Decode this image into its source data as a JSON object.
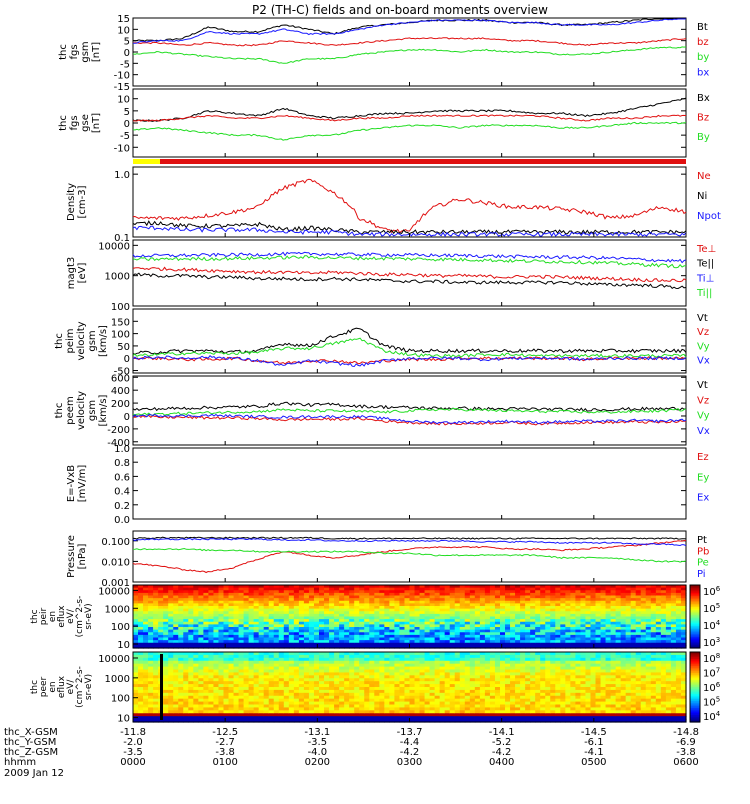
{
  "title": "P2 (TH-C) fields and on-board moments overview",
  "colors": {
    "black": "#000000",
    "red": "#e01010",
    "green": "#22dd22",
    "blue": "#1a1aff",
    "yellow": "#ffff00"
  },
  "chart_data": [
    {
      "type": "line",
      "panel": "fgs-gsm",
      "ylabel": [
        "thc",
        "fgs",
        "gsm",
        "[nT]"
      ],
      "yticks": [
        "15",
        "10",
        "5",
        "0",
        "-5",
        "-10",
        "-15"
      ],
      "ylim": [
        -15,
        15
      ],
      "series": [
        {
          "name": "Bt",
          "color": "black",
          "values": [
            5,
            5,
            6,
            11,
            9,
            9,
            12,
            10,
            8,
            11,
            12,
            13,
            14,
            14,
            14,
            13,
            13,
            12,
            12,
            13,
            14,
            15,
            16
          ]
        },
        {
          "name": "bz",
          "color": "red",
          "values": [
            4,
            4,
            3,
            4,
            3,
            3,
            5,
            4,
            3,
            4,
            5,
            6,
            6,
            6,
            6,
            5,
            5,
            4,
            3,
            4,
            4,
            5,
            6
          ]
        },
        {
          "name": "by",
          "color": "green",
          "values": [
            -1,
            0,
            -1,
            -2,
            -3,
            -3,
            -5,
            -3,
            -3,
            -1,
            0,
            1,
            1,
            0,
            1,
            0,
            0,
            -1,
            -1,
            0,
            1,
            2,
            2
          ]
        },
        {
          "name": "bx",
          "color": "blue",
          "values": [
            4,
            5,
            5,
            9,
            8,
            8,
            10,
            8,
            8,
            10,
            12,
            13,
            14,
            14,
            14,
            13,
            13,
            12,
            12,
            12,
            13,
            14,
            15
          ]
        }
      ]
    },
    {
      "type": "line",
      "panel": "fgs-gse",
      "ylabel": [
        "thc",
        "fgs",
        "gse",
        "[nT]"
      ],
      "yticks": [
        "10",
        "5",
        "0",
        "-5",
        "-10"
      ],
      "ylim": [
        -14,
        14
      ],
      "series": [
        {
          "name": "Bx",
          "color": "black",
          "values": [
            1,
            1,
            2,
            5,
            4,
            3,
            6,
            3,
            2,
            3,
            4,
            4,
            5,
            5,
            5,
            5,
            4,
            4,
            3,
            4,
            6,
            8,
            10
          ]
        },
        {
          "name": "Bz",
          "color": "red",
          "values": [
            1,
            1,
            2,
            3,
            2,
            2,
            3,
            2,
            1,
            2,
            2,
            3,
            3,
            3,
            3,
            3,
            3,
            2,
            1,
            2,
            2,
            3,
            3
          ]
        },
        {
          "name": "By",
          "color": "green",
          "values": [
            -3,
            -2,
            -3,
            -4,
            -5,
            -5,
            -7,
            -5,
            -5,
            -3,
            -2,
            -1,
            -1,
            -2,
            -1,
            -1,
            -1,
            -2,
            -2,
            -1,
            0,
            0,
            0
          ]
        }
      ]
    },
    {
      "type": "line",
      "panel": "density",
      "yscale": "log",
      "ylabel": [
        "Density",
        "[cm-3]"
      ],
      "yticks": [
        "1.0",
        "0.1"
      ],
      "ylim": [
        0.1,
        1.3
      ],
      "series": [
        {
          "name": "Ne",
          "color": "red",
          "values": [
            0.2,
            0.2,
            0.2,
            0.22,
            0.25,
            0.3,
            0.6,
            0.8,
            0.5,
            0.2,
            0.13,
            0.12,
            0.3,
            0.4,
            0.35,
            0.3,
            0.3,
            0.28,
            0.25,
            0.2,
            0.22,
            0.3,
            0.25
          ]
        },
        {
          "name": "Ni",
          "color": "black",
          "values": [
            0.16,
            0.17,
            0.15,
            0.15,
            0.15,
            0.16,
            0.13,
            0.14,
            0.13,
            0.12,
            0.12,
            0.12,
            0.12,
            0.12,
            0.12,
            0.12,
            0.12,
            0.12,
            0.12,
            0.12,
            0.12,
            0.12,
            0.12
          ]
        },
        {
          "name": "Npot",
          "color": "blue",
          "values": [
            0.14,
            0.14,
            0.13,
            0.13,
            0.13,
            0.13,
            0.12,
            0.12,
            0.12,
            0.11,
            0.11,
            0.11,
            0.11,
            0.11,
            0.11,
            0.11,
            0.11,
            0.11,
            0.11,
            0.11,
            0.11,
            0.11,
            0.11
          ]
        }
      ]
    },
    {
      "type": "line",
      "panel": "temperature",
      "yscale": "log",
      "ylabel": [
        "magt3",
        "[eV]"
      ],
      "yticks": [
        "10000",
        "1000",
        "100"
      ],
      "ylim": [
        100,
        15000
      ],
      "series": [
        {
          "name": "Te⊥",
          "color": "red",
          "values": [
            1800,
            1700,
            1600,
            1500,
            1400,
            1300,
            1300,
            1200,
            1300,
            1200,
            1100,
            1100,
            1000,
            1000,
            950,
            900,
            950,
            900,
            850,
            800,
            750,
            700,
            700
          ]
        },
        {
          "name": "Te||",
          "color": "black",
          "values": [
            1100,
            1000,
            1000,
            900,
            900,
            800,
            800,
            750,
            800,
            750,
            700,
            650,
            650,
            600,
            600,
            600,
            600,
            600,
            550,
            500,
            500,
            450,
            400
          ]
        },
        {
          "name": "Ti⊥",
          "color": "blue",
          "values": [
            4500,
            4600,
            4700,
            4800,
            4900,
            5000,
            5200,
            5300,
            5100,
            5000,
            4900,
            4800,
            4700,
            4600,
            4500,
            4300,
            4200,
            4100,
            4000,
            3800,
            3500,
            3200,
            3000
          ]
        },
        {
          "name": "Ti||",
          "color": "green",
          "values": [
            3500,
            3500,
            3600,
            3600,
            3700,
            3800,
            4000,
            4100,
            3900,
            3800,
            3700,
            3600,
            3500,
            3400,
            3300,
            3100,
            3000,
            2900,
            2800,
            2600,
            2400,
            2200,
            2000
          ]
        }
      ]
    },
    {
      "type": "line",
      "panel": "peim-velocity",
      "ylabel": [
        "thc",
        "peim",
        "velocity",
        "gsm",
        "[km/s]"
      ],
      "yticks": [
        "150",
        "100",
        "50",
        "0",
        "-50"
      ],
      "ylim": [
        -60,
        200
      ],
      "series": [
        {
          "name": "Vt",
          "color": "black",
          "values": [
            20,
            25,
            30,
            30,
            25,
            30,
            60,
            50,
            90,
            120,
            50,
            30,
            30,
            30,
            30,
            30,
            30,
            30,
            30,
            30,
            30,
            30,
            30
          ]
        },
        {
          "name": "Vz",
          "color": "red",
          "values": [
            0,
            0,
            -5,
            -5,
            0,
            -10,
            -20,
            -10,
            -10,
            -20,
            -10,
            -5,
            -5,
            0,
            0,
            0,
            0,
            0,
            -5,
            0,
            0,
            0,
            0
          ]
        },
        {
          "name": "Vy",
          "color": "green",
          "values": [
            10,
            15,
            20,
            20,
            20,
            25,
            40,
            40,
            60,
            80,
            30,
            15,
            10,
            10,
            15,
            15,
            10,
            10,
            10,
            10,
            10,
            10,
            10
          ]
        },
        {
          "name": "Vx",
          "color": "blue",
          "values": [
            0,
            5,
            0,
            5,
            0,
            -10,
            -30,
            -10,
            -20,
            -30,
            -10,
            0,
            0,
            0,
            -5,
            0,
            0,
            0,
            -5,
            0,
            0,
            0,
            0
          ]
        }
      ]
    },
    {
      "type": "line",
      "panel": "peem-velocity",
      "ylabel": [
        "thc",
        "peem",
        "velocity",
        "gsm",
        "[km/s]"
      ],
      "yticks": [
        "600",
        "400",
        "200",
        "0",
        "-200",
        "-400"
      ],
      "ylim": [
        -450,
        620
      ],
      "series": [
        {
          "name": "Vt",
          "color": "black",
          "values": [
            100,
            110,
            120,
            130,
            140,
            150,
            200,
            170,
            180,
            150,
            140,
            130,
            120,
            120,
            110,
            110,
            110,
            100,
            100,
            100,
            110,
            110,
            120
          ]
        },
        {
          "name": "Vz",
          "color": "red",
          "values": [
            0,
            -20,
            -20,
            -30,
            -30,
            -40,
            -60,
            -50,
            -50,
            -40,
            -80,
            -100,
            -120,
            -120,
            -110,
            -100,
            -120,
            -110,
            -100,
            -100,
            -90,
            -100,
            -80
          ]
        },
        {
          "name": "Vy",
          "color": "green",
          "values": [
            20,
            30,
            40,
            50,
            60,
            70,
            100,
            80,
            80,
            70,
            60,
            80,
            100,
            100,
            90,
            80,
            70,
            70,
            60,
            60,
            70,
            80,
            100
          ]
        },
        {
          "name": "Vx",
          "color": "blue",
          "values": [
            0,
            10,
            0,
            10,
            0,
            -10,
            -20,
            -10,
            -10,
            -10,
            -40,
            -80,
            -100,
            -100,
            -90,
            -80,
            -100,
            -90,
            -80,
            -80,
            -70,
            -80,
            -60
          ]
        }
      ]
    },
    {
      "type": "line",
      "panel": "efield",
      "ylabel": [
        "E=-VxB",
        "[mV/m]"
      ],
      "yticks": [
        "1.0",
        "0.8",
        "0.6",
        "0.4",
        "0.2",
        "0.0"
      ],
      "ylim": [
        0,
        1
      ],
      "series": [
        {
          "name": "Ez",
          "color": "red",
          "values": []
        },
        {
          "name": "Ey",
          "color": "green",
          "values": []
        },
        {
          "name": "Ex",
          "color": "blue",
          "values": []
        }
      ]
    },
    {
      "type": "line",
      "panel": "pressure",
      "yscale": "log",
      "ylabel": [
        "Pressure",
        "[nPa]"
      ],
      "yticks": [
        "0.100",
        "0.010",
        "0.001"
      ],
      "ylim": [
        0.001,
        0.3
      ],
      "series": [
        {
          "name": "Pt",
          "color": "black",
          "values": [
            0.13,
            0.14,
            0.14,
            0.14,
            0.14,
            0.14,
            0.14,
            0.14,
            0.13,
            0.13,
            0.13,
            0.13,
            0.13,
            0.13,
            0.13,
            0.13,
            0.13,
            0.13,
            0.13,
            0.13,
            0.13,
            0.13,
            0.13
          ]
        },
        {
          "name": "Pb",
          "color": "red",
          "values": [
            0.008,
            0.006,
            0.004,
            0.003,
            0.005,
            0.012,
            0.03,
            0.02,
            0.015,
            0.02,
            0.03,
            0.04,
            0.05,
            0.05,
            0.05,
            0.04,
            0.04,
            0.035,
            0.04,
            0.05,
            0.06,
            0.08,
            0.1
          ]
        },
        {
          "name": "Pe",
          "color": "green",
          "values": [
            0.04,
            0.04,
            0.04,
            0.035,
            0.035,
            0.03,
            0.03,
            0.03,
            0.03,
            0.03,
            0.025,
            0.025,
            0.02,
            0.02,
            0.02,
            0.02,
            0.02,
            0.015,
            0.015,
            0.015,
            0.012,
            0.01,
            0.01
          ]
        },
        {
          "name": "Pi",
          "color": "blue",
          "values": [
            0.11,
            0.12,
            0.12,
            0.12,
            0.12,
            0.12,
            0.11,
            0.11,
            0.1,
            0.1,
            0.1,
            0.1,
            0.1,
            0.1,
            0.09,
            0.09,
            0.09,
            0.08,
            0.08,
            0.08,
            0.07,
            0.07,
            0.06
          ]
        }
      ]
    },
    {
      "type": "heatmap",
      "panel": "peir-spectrogram",
      "ylabel": [
        "thc",
        "peir",
        "en",
        "eflux",
        "eV/",
        "(cm^2-s-",
        "sr-eV)"
      ],
      "yticks": [
        "10000",
        "1000",
        "100",
        "10"
      ],
      "colorbar_ticks": [
        "10^6",
        "10^5",
        "10^4",
        "10^3"
      ]
    },
    {
      "type": "heatmap",
      "panel": "peer-spectrogram",
      "ylabel": [
        "thc",
        "peer",
        "en",
        "eflux",
        "eV/",
        "(cm^2-s-",
        "sr-eV)"
      ],
      "yticks": [
        "10000",
        "1000",
        "100",
        "10"
      ],
      "colorbar_ticks": [
        "10^8",
        "10^7",
        "10^6",
        "10^5",
        "10^4"
      ]
    }
  ],
  "panel_labels": [
    [
      "Bt",
      "bz",
      "by",
      "bx"
    ],
    [
      "Bx",
      "Bz",
      "By"
    ],
    [
      "Ne",
      "Ni",
      "Npot"
    ],
    [
      "Te⊥",
      "Te||",
      "Ti⊥",
      "Ti||"
    ],
    [
      "Vt",
      "Vz",
      "Vy",
      "Vx"
    ],
    [
      "Vt",
      "Vz",
      "Vy",
      "Vx"
    ],
    [
      "Ez",
      "Ey",
      "Ex"
    ],
    [
      "Pt",
      "Pb",
      "Pe",
      "Pi"
    ]
  ],
  "xaxis": {
    "rows": [
      {
        "label": "thc_X-GSM",
        "values": [
          "-11.8",
          "-12.5",
          "-13.1",
          "-13.7",
          "-14.1",
          "-14.5",
          "-14.8"
        ]
      },
      {
        "label": "thc_Y-GSM",
        "values": [
          "-2.0",
          "-2.7",
          "-3.5",
          "-4.4",
          "-5.2",
          "-6.1",
          "-6.9"
        ]
      },
      {
        "label": "thc_Z-GSM",
        "values": [
          "-3.5",
          "-3.8",
          "-4.0",
          "-4.2",
          "-4.2",
          "-4.1",
          "-3.8"
        ]
      },
      {
        "label": "hhmm",
        "values": [
          "0000",
          "0100",
          "0200",
          "0300",
          "0400",
          "0500",
          "0600"
        ]
      }
    ],
    "date": "2009 Jan 12"
  }
}
